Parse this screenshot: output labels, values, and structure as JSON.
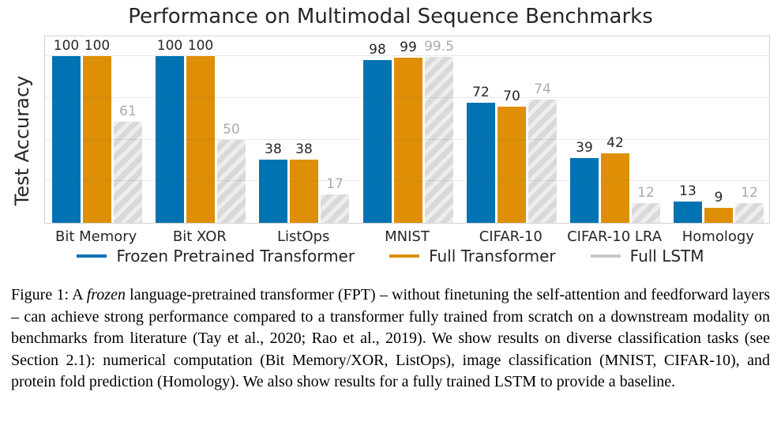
{
  "chart_data": {
    "type": "bar",
    "title": "Performance on Multimodal Sequence Benchmarks",
    "xlabel": "",
    "ylabel": "Test Accuracy",
    "ylim": [
      0,
      113
    ],
    "grid": true,
    "gridlines": [
      25,
      50,
      75,
      100
    ],
    "legend_position": "bottom",
    "categories": [
      "Bit Memory",
      "Bit XOR",
      "ListOps",
      "MNIST",
      "CIFAR-10",
      "CIFAR-10 LRA",
      "Homology"
    ],
    "series": [
      {
        "name": "Frozen Pretrained Transformer",
        "color": "#0173b2",
        "swatch_color": "#0173b2",
        "hatch": false,
        "value_label_color": "#262626",
        "values": [
          100,
          100,
          38,
          98,
          72,
          39,
          13
        ]
      },
      {
        "name": "Full Transformer",
        "color": "#de8f05",
        "swatch_color": "#de8f05",
        "hatch": false,
        "value_label_color": "#262626",
        "values": [
          100,
          100,
          38,
          99,
          70,
          42,
          9
        ]
      },
      {
        "name": "Full LSTM",
        "color": "#d9d9d9",
        "swatch_color": "#c9c9c9",
        "hatch": true,
        "value_label_color": "#ababab",
        "values": [
          61,
          50,
          17,
          99.5,
          74,
          12,
          12
        ]
      }
    ]
  },
  "caption": {
    "figure_label": "Figure 1:",
    "prefix": "Figure 1:  A ",
    "italic": "frozen",
    "body": " language-pretrained transformer (FPT) – without finetuning the self-attention and feedforward layers – can achieve strong performance compared to a transformer fully trained from scratch on a downstream modality on benchmarks from literature (Tay et al., 2020; Rao et al., 2019).  We show results on diverse classification tasks (see Section 2.1):  numerical computation (Bit Memory/XOR, ListOps), image classification (MNIST, CIFAR-10), and protein fold prediction (Homology).  We also show results for a fully trained LSTM to provide a baseline."
  }
}
